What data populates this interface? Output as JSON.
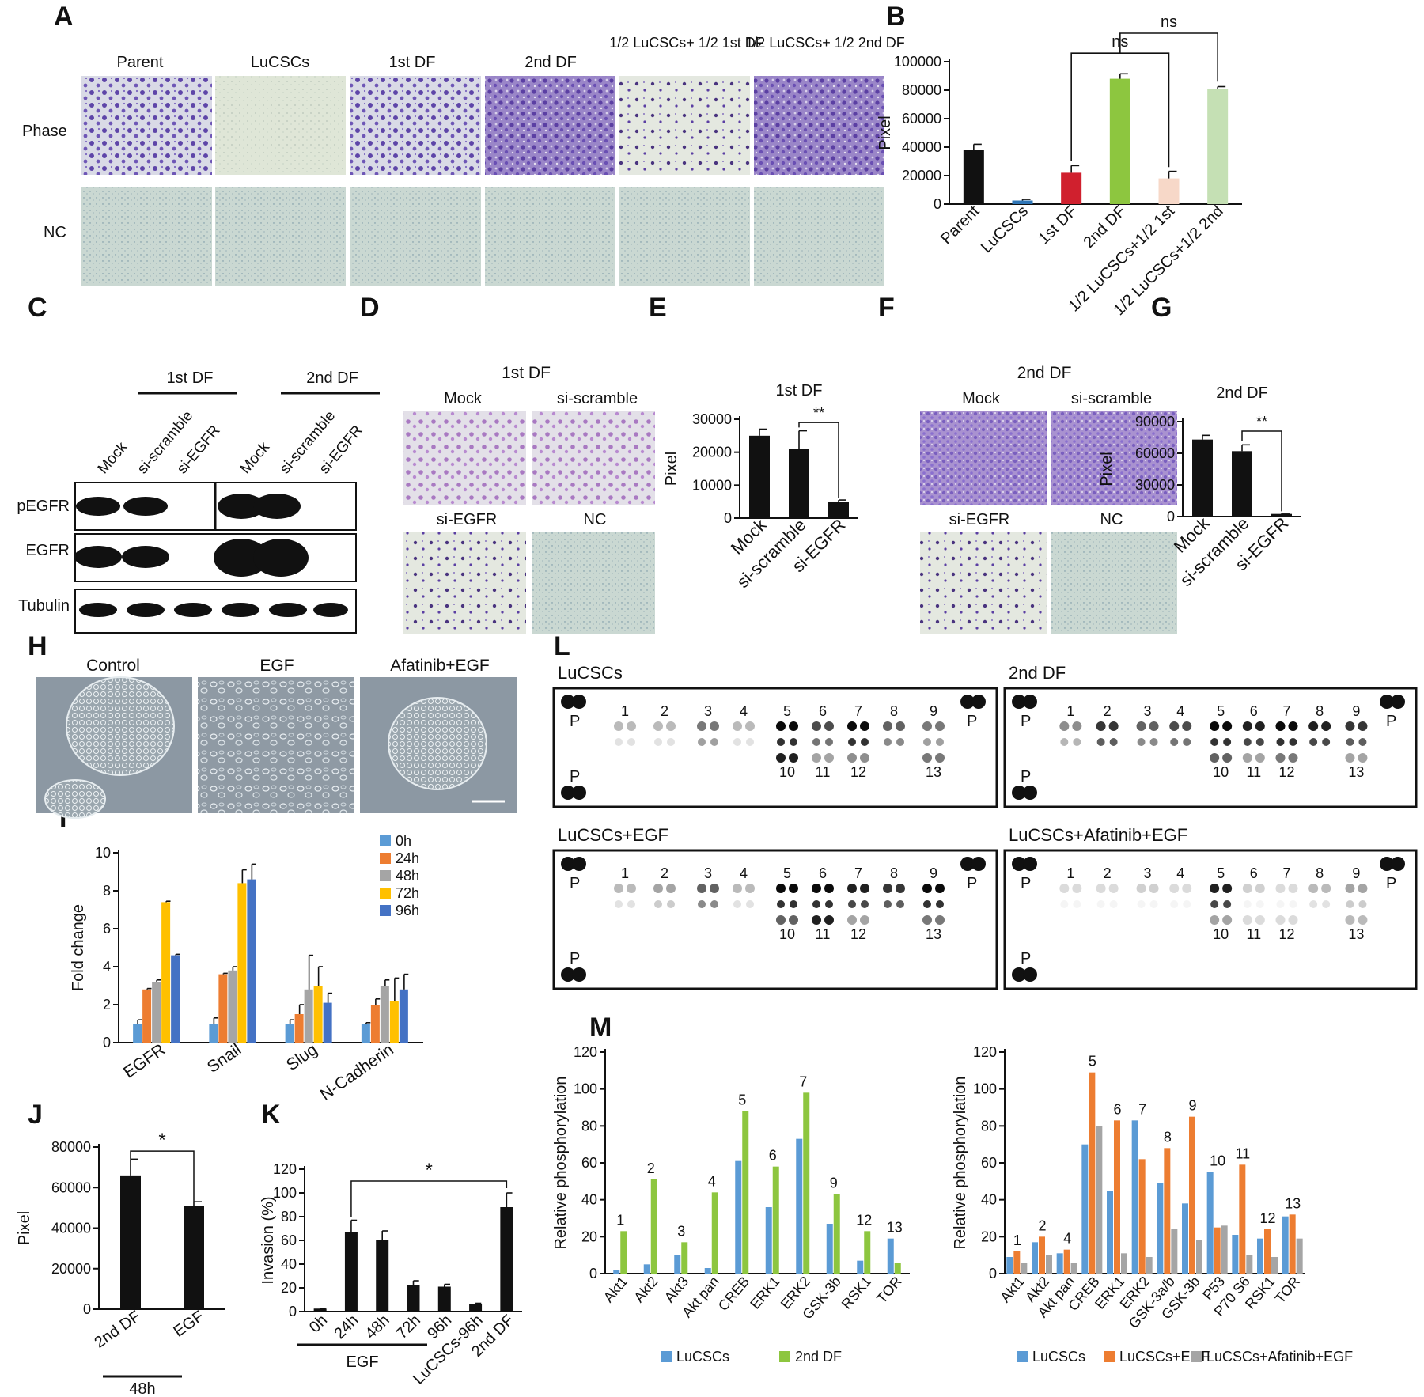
{
  "panel_letters": [
    "A",
    "B",
    "C",
    "D",
    "E",
    "F",
    "G",
    "H",
    "I",
    "J",
    "K",
    "L",
    "M"
  ],
  "colors": {
    "black": "#111111",
    "blue": "#5b9bd5",
    "red": "#d0202e",
    "green": "#8dc63f",
    "pink": "#f7d8c8",
    "lightgreen": "#c5e0b4",
    "orange": "#ed7d31",
    "gray": "#a5a5a5",
    "yellow": "#ffc000",
    "darkblue": "#4472c4",
    "lightblue": "#5b9bd5",
    "purple": "#6a4fb3",
    "light_purple": "#b07cc6",
    "teal_bg": "#c9d8cf"
  },
  "panel_A": {
    "columns": [
      "Parent",
      "LuCSCs",
      "1st DF",
      "2nd DF",
      "1/2 LuCSCs+ 1/2 1st DF",
      "1/2 LuCSCs+ 1/2 2nd DF"
    ],
    "rows": [
      "Phase",
      "NC"
    ]
  },
  "panel_B": {
    "type": "bar",
    "categories": [
      "Parent",
      "LuCSCs",
      "1st DF",
      "2nd DF",
      "1/2 LuCSCs+1/2 1st",
      "1/2 LuCSCs+1/2 2nd"
    ],
    "values": [
      38000,
      2500,
      22000,
      88000,
      18000,
      81000
    ],
    "errors": [
      4000,
      800,
      5000,
      3500,
      5000,
      1500
    ],
    "colors": [
      "#111111",
      "#2e75b6",
      "#d0202e",
      "#8dc63f",
      "#f7d8c8",
      "#c5e0b4"
    ],
    "ylabel": "Pixel",
    "ylim": [
      0,
      100000
    ],
    "yticks": [
      "0",
      "20000",
      "40000",
      "60000",
      "80000",
      "100000"
    ],
    "annotations": [
      "ns",
      "ns"
    ]
  },
  "panel_C": {
    "groups": [
      "1st DF",
      "2nd DF"
    ],
    "lanes": [
      "Mock",
      "si-scramble",
      "si-EGFR",
      "Mock",
      "si-scramble",
      "si-EGFR"
    ],
    "rows": [
      "pEGFR",
      "EGFR",
      "Tubulin"
    ]
  },
  "panel_D": {
    "title": "1st DF",
    "labels": [
      "Mock",
      "si-scramble",
      "si-EGFR",
      "NC"
    ]
  },
  "panel_E": {
    "type": "bar",
    "title": "1st DF",
    "categories": [
      "Mock",
      "si-scramble",
      "si-EGFR"
    ],
    "values": [
      25000,
      21000,
      5000
    ],
    "errors": [
      2000,
      5500,
      500
    ],
    "ylabel": "Pixel",
    "ylim": [
      0,
      30000
    ],
    "yticks": [
      "0",
      "10000",
      "20000",
      "30000"
    ],
    "annotation": "**"
  },
  "panel_F": {
    "title": "2nd DF",
    "labels": [
      "Mock",
      "si-scramble",
      "si-EGFR",
      "NC"
    ]
  },
  "panel_G": {
    "type": "bar",
    "title": "2nd DF",
    "categories": [
      "Mock",
      "si-scramble",
      "si-EGFR"
    ],
    "values": [
      73000,
      62000,
      2500
    ],
    "errors": [
      4000,
      6000,
      500
    ],
    "ylabel": "Pixel",
    "ylim": [
      0,
      90000
    ],
    "yticks": [
      "0",
      "30000",
      "60000",
      "90000"
    ],
    "annotation": "**"
  },
  "panel_H": {
    "labels": [
      "Control",
      "EGF",
      "Afatinib+EGF"
    ]
  },
  "panel_I": {
    "type": "bar",
    "categories": [
      "EGFR",
      "Snail",
      "Slug",
      "N-Cadherin"
    ],
    "series": [
      {
        "name": "0h",
        "values": [
          1,
          1,
          1,
          1
        ],
        "errors": [
          0.2,
          0.3,
          0.2,
          0.05
        ]
      },
      {
        "name": "24h",
        "values": [
          2.8,
          3.6,
          1.5,
          2.0
        ],
        "errors": [
          0.05,
          0.05,
          0.5,
          0.3
        ]
      },
      {
        "name": "48h",
        "values": [
          3.2,
          3.8,
          2.8,
          3.0
        ],
        "errors": [
          0.1,
          0.2,
          1.8,
          0.3
        ]
      },
      {
        "name": "72h",
        "values": [
          7.4,
          8.4,
          3.0,
          2.2
        ],
        "errors": [
          0.05,
          0.7,
          1.0,
          1.2
        ]
      },
      {
        "name": "96h",
        "values": [
          4.6,
          8.6,
          2.1,
          2.8
        ],
        "errors": [
          0.05,
          0.8,
          0.5,
          0.8
        ]
      }
    ],
    "series_colors": [
      "#5b9bd5",
      "#ed7d31",
      "#a5a5a5",
      "#ffc000",
      "#4472c4"
    ],
    "ylabel": "Fold change",
    "ylim": [
      0,
      10
    ],
    "yticks": [
      "0",
      "2",
      "4",
      "6",
      "8",
      "10"
    ]
  },
  "panel_J": {
    "type": "bar",
    "categories": [
      "2nd DF",
      "EGF"
    ],
    "values": [
      66000,
      51000
    ],
    "errors": [
      8000,
      2000
    ],
    "ylabel": "Pixel",
    "ylim": [
      0,
      80000
    ],
    "yticks": [
      "0",
      "20000",
      "40000",
      "60000",
      "80000"
    ],
    "annotation": "*",
    "group_label": "48h"
  },
  "panel_K": {
    "type": "bar",
    "categories": [
      "0h",
      "24h",
      "48h",
      "72h",
      "96h",
      "LuCSCs-96h",
      "2nd DF"
    ],
    "values": [
      2.5,
      67,
      60,
      22,
      21,
      6,
      88
    ],
    "errors": [
      0.3,
      10,
      8,
      4,
      2,
      1,
      12
    ],
    "ylabel": "Invasion (%)",
    "ylim": [
      0,
      120
    ],
    "yticks": [
      "0",
      "20",
      "40",
      "60",
      "80",
      "100",
      "120"
    ],
    "annotation": "*",
    "group_label": "EGF"
  },
  "panel_L": {
    "blots": [
      {
        "title": "LuCSCs",
        "numbers": [
          "1",
          "2",
          "3",
          "4",
          "5",
          "6",
          "7",
          "8",
          "9",
          "10",
          "11",
          "12",
          "13"
        ],
        "p": "P"
      },
      {
        "title": "2nd DF",
        "numbers": [
          "1",
          "2",
          "3",
          "4",
          "5",
          "6",
          "7",
          "8",
          "9",
          "10",
          "11",
          "12",
          "13"
        ],
        "p": "P"
      },
      {
        "title": "LuCSCs+EGF",
        "numbers": [
          "1",
          "2",
          "3",
          "4",
          "5",
          "6",
          "7",
          "8",
          "9",
          "10",
          "11",
          "12",
          "13"
        ],
        "p": "P"
      },
      {
        "title": "LuCSCs+Afatinib+EGF",
        "numbers": [
          "1",
          "2",
          "3",
          "4",
          "5",
          "6",
          "7",
          "8",
          "9",
          "10",
          "11",
          "12",
          "13"
        ],
        "p": "P"
      }
    ]
  },
  "panel_M1": {
    "type": "bar",
    "categories": [
      "Akt1",
      "Akt2",
      "Akt3",
      "Akt pan",
      "CREB",
      "ERK1",
      "ERK2",
      "GSK-3b",
      "RSK1",
      "TOR"
    ],
    "series": [
      {
        "name": "LuCSCs",
        "values": [
          2,
          5,
          10,
          3,
          61,
          36,
          73,
          27,
          7,
          19
        ]
      },
      {
        "name": "2nd DF",
        "values": [
          23,
          51,
          17,
          44,
          88,
          58,
          98,
          43,
          23,
          6
        ]
      }
    ],
    "series_colors": [
      "#5b9bd5",
      "#8dc63f"
    ],
    "number_labels": [
      "1",
      "2",
      "3",
      "4",
      "5",
      "6",
      "7",
      "9",
      "12",
      "13"
    ],
    "ylabel": "Relative phosphorylation",
    "ylim": [
      0,
      120
    ],
    "yticks": [
      "0",
      "20",
      "40",
      "60",
      "80",
      "100",
      "120"
    ]
  },
  "panel_M2": {
    "type": "bar",
    "categories": [
      "Akt1",
      "Akt2",
      "Akt pan",
      "CREB",
      "ERK1",
      "ERK2",
      "GSK-3a/b",
      "GSK-3b",
      "P53",
      "P70 S6",
      "RSK1",
      "TOR"
    ],
    "series": [
      {
        "name": "LuCSCs",
        "values": [
          9,
          17,
          11,
          70,
          45,
          83,
          49,
          38,
          55,
          21,
          19,
          31
        ]
      },
      {
        "name": "LuCSCs+EGF",
        "values": [
          12,
          20,
          13,
          109,
          83,
          62,
          68,
          85,
          25,
          59,
          24,
          32
        ]
      },
      {
        "name": "LuCSCs+Afatinib+EGF",
        "values": [
          6,
          10,
          6,
          80,
          11,
          9,
          24,
          18,
          26,
          10,
          9,
          19
        ]
      }
    ],
    "series_colors": [
      "#5b9bd5",
      "#ed7d31",
      "#a5a5a5"
    ],
    "number_labels": [
      "1",
      "2",
      "4",
      "5",
      "6",
      "7",
      "8",
      "9",
      "10",
      "11",
      "12",
      "13"
    ],
    "ylabel": "Relative phosphorylation",
    "ylim": [
      0,
      120
    ],
    "yticks": [
      "0",
      "20",
      "40",
      "60",
      "80",
      "100",
      "120"
    ]
  }
}
